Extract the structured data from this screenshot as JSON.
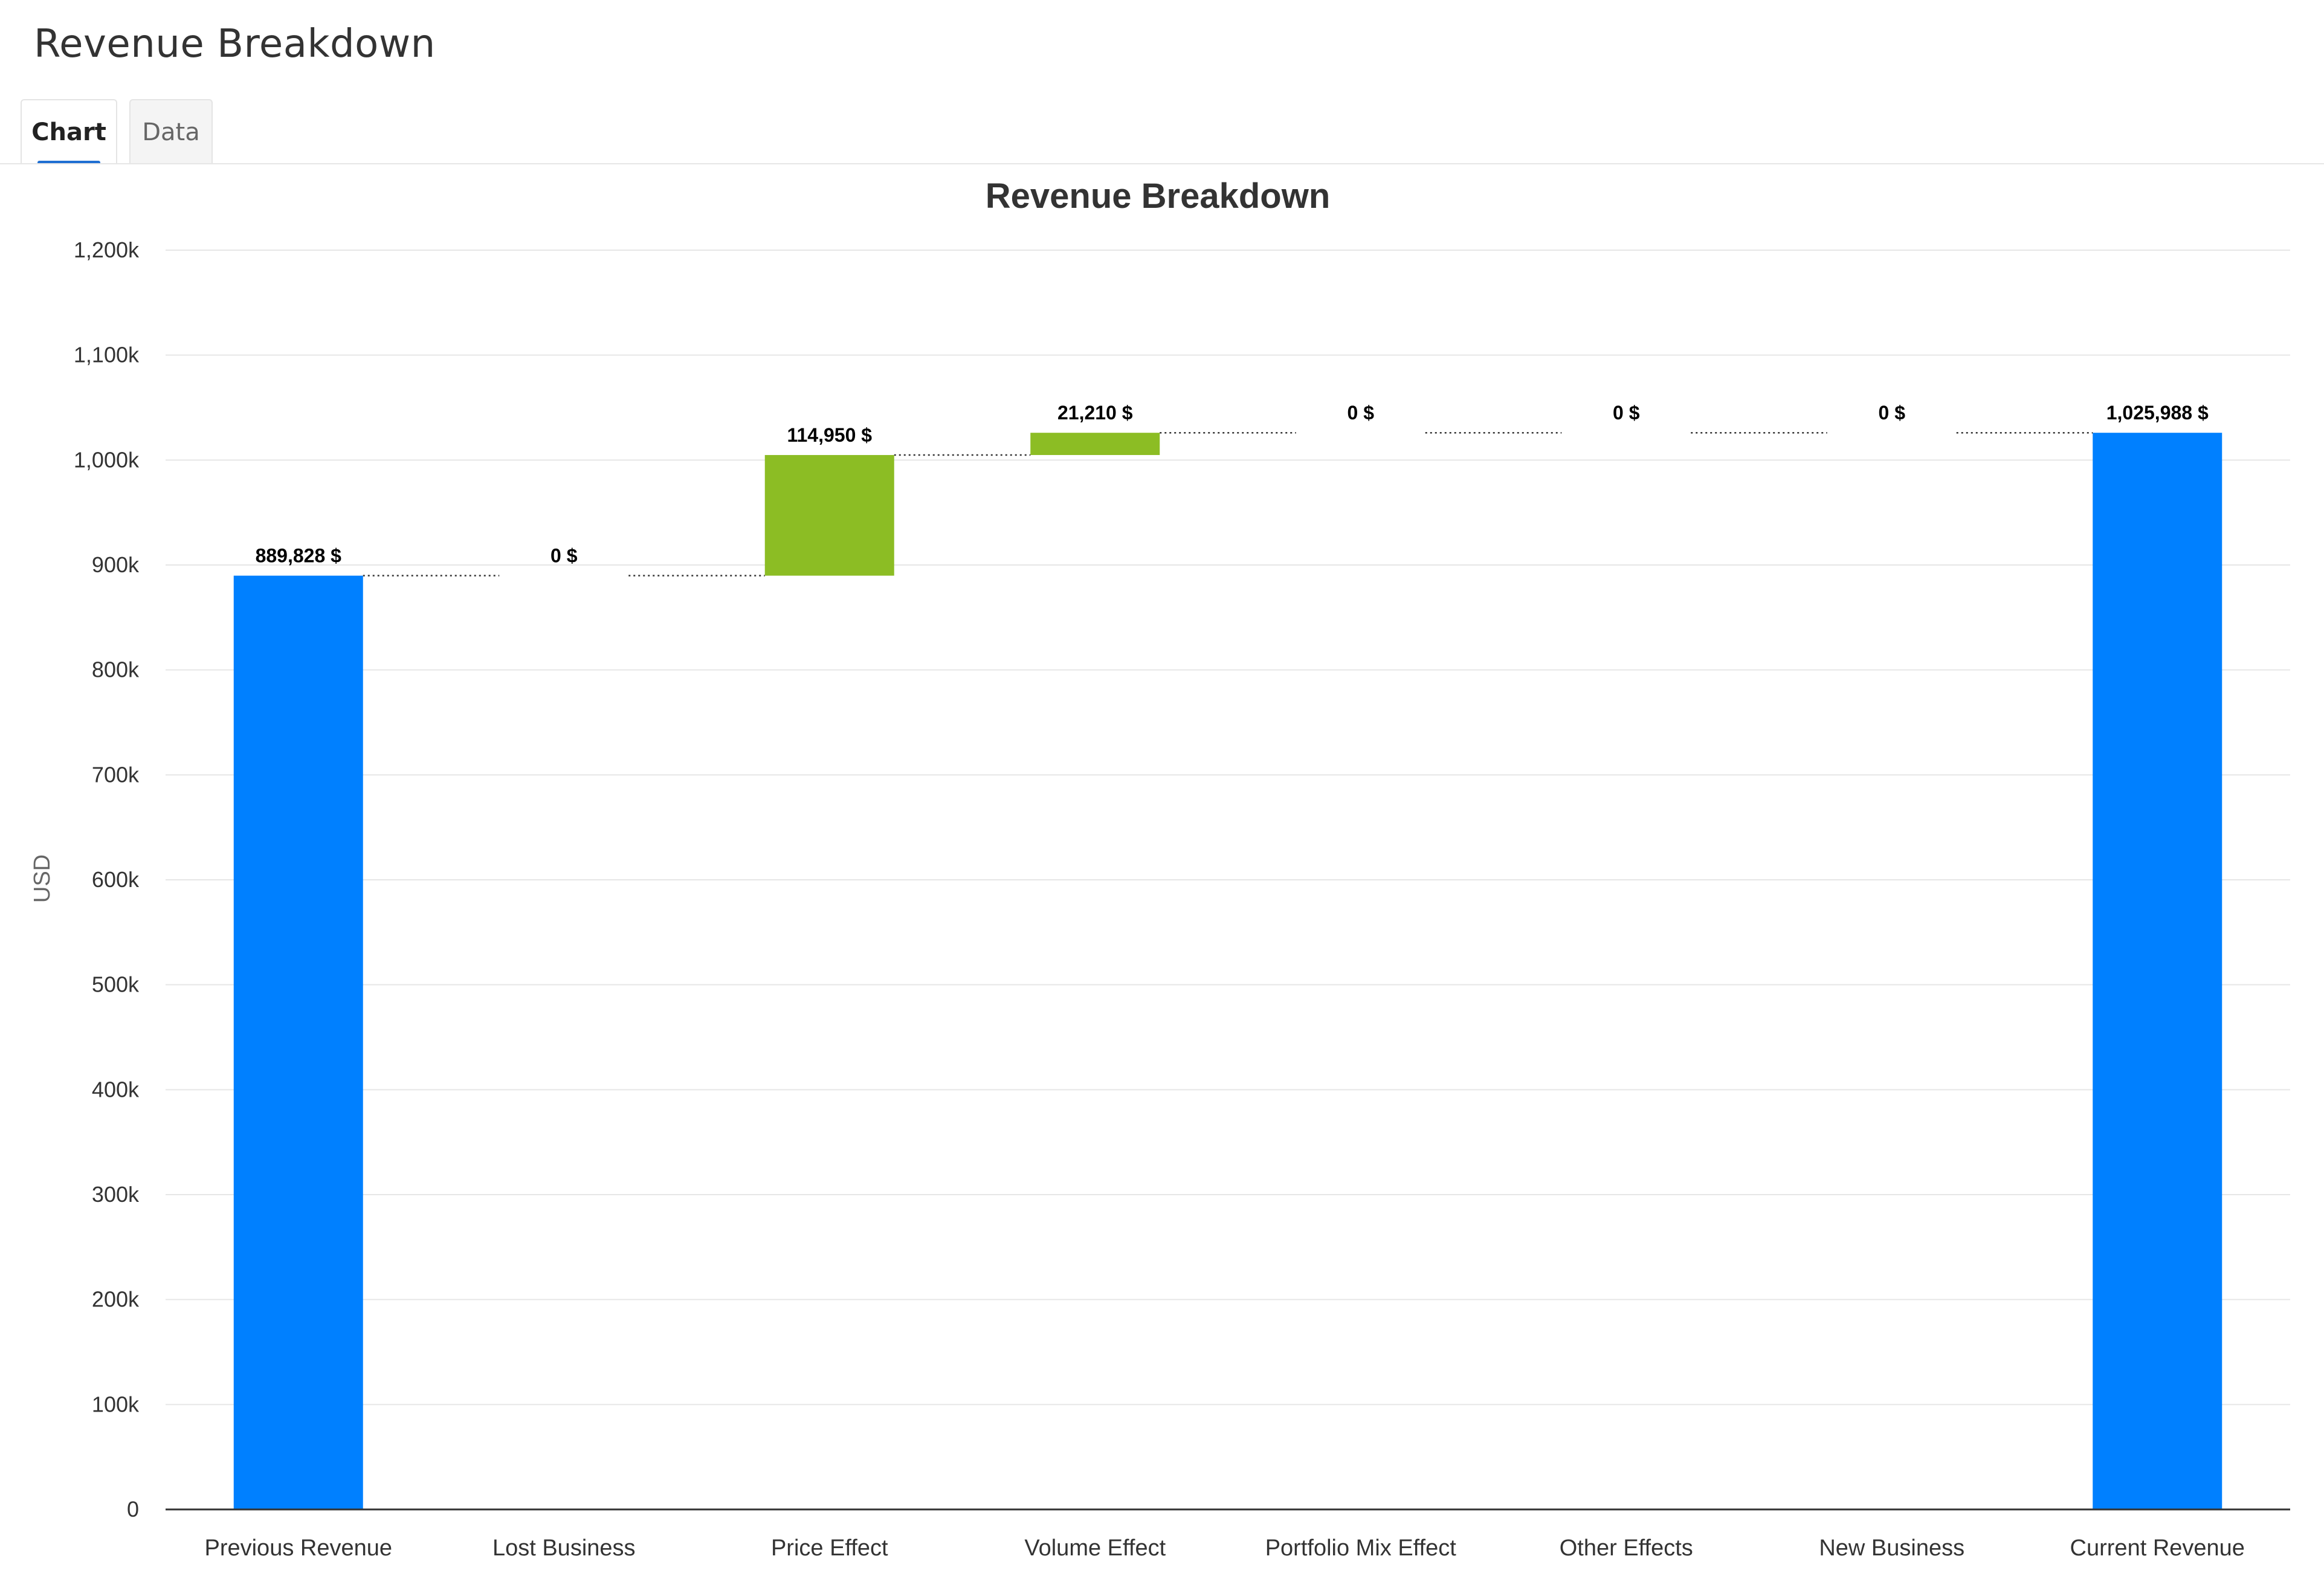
{
  "header": {
    "title": "Revenue Breakdown"
  },
  "tabs": [
    {
      "label": "Chart",
      "active": true
    },
    {
      "label": "Data",
      "active": false
    }
  ],
  "colors": {
    "total": "#0080ff",
    "increase": "#8cbd24",
    "grid": "#e6e6e6",
    "axis": "#333333",
    "connector": "#333333",
    "tab_active_underline": "#1f6fd2"
  },
  "chart_data": {
    "type": "bar",
    "subtype": "waterfall",
    "title": "Revenue Breakdown",
    "xlabel": "",
    "ylabel": "USD",
    "ylim": [
      0,
      1200000
    ],
    "yticks": [
      0,
      100000,
      200000,
      300000,
      400000,
      500000,
      600000,
      700000,
      800000,
      900000,
      1000000,
      1100000,
      1200000
    ],
    "ytick_labels": [
      "0",
      "100k",
      "200k",
      "300k",
      "400k",
      "500k",
      "600k",
      "700k",
      "800k",
      "900k",
      "1,000k",
      "1,100k",
      "1,200k"
    ],
    "grid": true,
    "legend": "none",
    "categories": [
      "Previous Revenue",
      "Lost Business",
      "Price Effect",
      "Volume Effect",
      "Portfolio Mix Effect",
      "Other Effects",
      "New Business",
      "Current Revenue"
    ],
    "values": [
      889828,
      0,
      114950,
      21210,
      0,
      0,
      0,
      1025988
    ],
    "kinds": [
      "total",
      "delta",
      "delta",
      "delta",
      "delta",
      "delta",
      "delta",
      "total"
    ],
    "data_labels": [
      "889,828 $",
      "0 $",
      "114,950 $",
      "21,210 $",
      "0 $",
      "0 $",
      "0 $",
      "1,025,988 $"
    ]
  }
}
